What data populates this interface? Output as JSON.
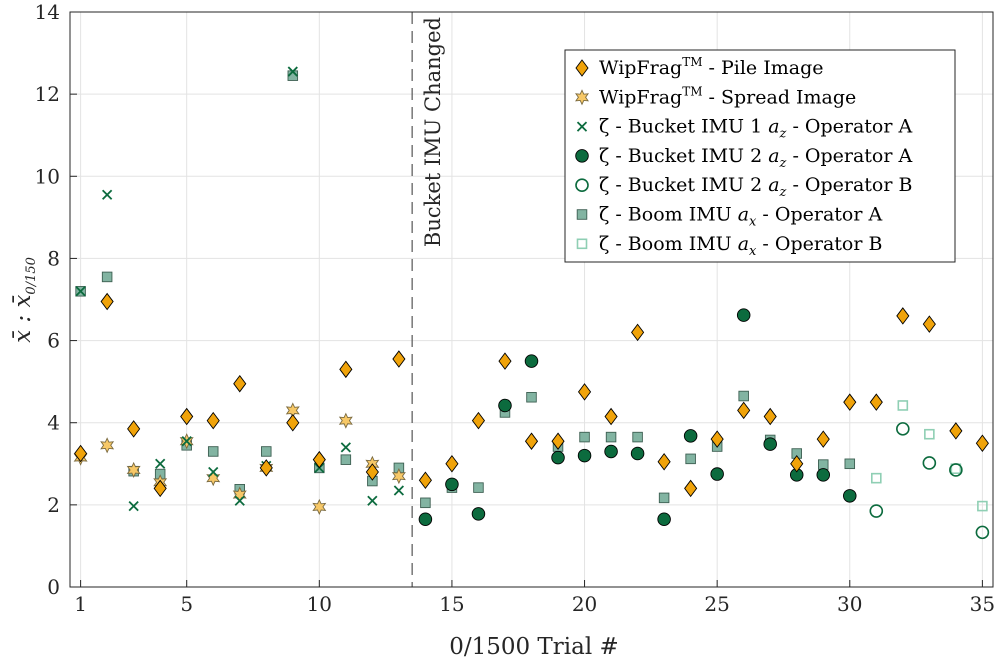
{
  "chart_data": {
    "type": "scatter",
    "xlabel": "0/1500 Trial #",
    "ylabel": {
      "main": "x̄ : x̄",
      "sub": "0/150"
    },
    "xlim": [
      0.6,
      35.4
    ],
    "ylim": [
      0,
      14
    ],
    "xticks": [
      1,
      5,
      10,
      15,
      20,
      25,
      30,
      35
    ],
    "yticks": [
      0,
      2,
      4,
      6,
      8,
      10,
      12,
      14
    ],
    "grid": true,
    "legend_position": "top-right",
    "annotation": {
      "text": "Bucket IMU Changed",
      "x": 13.5
    },
    "colors": {
      "orange": "#f0a30a",
      "dark_green": "#0c6b3e",
      "light_green": "#82b4a2",
      "pale_green": "#8fcfb4"
    },
    "series": [
      {
        "name": "WipFrag™ - Pile Image",
        "label_main": "WipFrag",
        "label_sup": "TM",
        "label_rest": " - Pile Image",
        "marker": "diamond",
        "x": [
          1,
          2,
          3,
          4,
          5,
          6,
          7,
          8,
          9,
          10,
          11,
          12,
          13,
          14,
          15,
          16,
          17,
          18,
          19,
          20,
          21,
          22,
          23,
          24,
          25,
          26,
          27,
          28,
          29,
          30,
          31,
          32,
          33,
          34,
          35
        ],
        "y": [
          3.25,
          6.95,
          3.85,
          2.4,
          4.15,
          4.05,
          4.95,
          2.9,
          4.0,
          3.1,
          5.3,
          2.8,
          5.55,
          2.6,
          3.0,
          4.05,
          5.5,
          3.55,
          3.55,
          4.75,
          4.15,
          6.2,
          3.05,
          2.4,
          3.6,
          4.3,
          4.15,
          3.0,
          3.6,
          4.5,
          4.5,
          6.6,
          6.4,
          3.8,
          3.5
        ]
      },
      {
        "name": "WipFrag™ - Spread Image",
        "label_main": "WipFrag",
        "label_sup": "TM",
        "label_rest": " - Spread Image",
        "marker": "star",
        "x": [
          1,
          2,
          3,
          4,
          5,
          6,
          7,
          8,
          9,
          10,
          11,
          12,
          13
        ],
        "y": [
          3.15,
          3.45,
          2.85,
          2.55,
          3.55,
          2.65,
          2.25,
          2.9,
          4.3,
          1.95,
          4.05,
          3.0,
          2.7
        ]
      },
      {
        "name": "ζ - Bucket IMU 1 a_z - Operator A",
        "label_pre": "ζ - Bucket IMU 1 ",
        "label_var": "a",
        "label_sub": "z",
        "label_rest": " - Operator A",
        "marker": "x",
        "x": [
          1,
          2,
          3,
          4,
          5,
          6,
          7,
          8,
          9,
          10,
          11,
          12,
          13
        ],
        "y": [
          7.2,
          9.55,
          1.97,
          3.0,
          3.55,
          2.8,
          2.1,
          2.95,
          12.55,
          2.9,
          3.4,
          2.1,
          2.35
        ]
      },
      {
        "name": "ζ - Bucket IMU 2 a_z - Operator A",
        "label_pre": "ζ - Bucket IMU 2 ",
        "label_var": "a",
        "label_sub": "z",
        "label_rest": " - Operator A",
        "marker": "circle-filled",
        "x": [
          14,
          15,
          16,
          17,
          18,
          19,
          20,
          21,
          22,
          23,
          24,
          25,
          26,
          27,
          28,
          29,
          30
        ],
        "y": [
          1.65,
          2.5,
          1.78,
          4.42,
          5.5,
          3.15,
          3.2,
          3.3,
          3.25,
          1.65,
          3.68,
          2.75,
          6.62,
          3.48,
          2.73,
          2.73,
          2.22
        ]
      },
      {
        "name": "ζ - Bucket IMU 2 a_z - Operator B",
        "label_pre": "ζ - Bucket IMU 2 ",
        "label_var": "a",
        "label_sub": "z",
        "label_rest": " - Operator B",
        "marker": "circle-open",
        "x": [
          31,
          32,
          33,
          34,
          35
        ],
        "y": [
          1.85,
          3.85,
          3.02,
          2.85,
          1.33
        ]
      },
      {
        "name": "ζ - Boom IMU a_x - Operator A",
        "label_pre": "ζ - Boom IMU ",
        "label_var": "a",
        "label_sub": "x",
        "label_rest": " - Operator A",
        "marker": "square-filled",
        "x": [
          1,
          2,
          3,
          4,
          5,
          6,
          7,
          8,
          9,
          10,
          11,
          12,
          13,
          14,
          15,
          16,
          17,
          18,
          19,
          20,
          21,
          22,
          23,
          24,
          25,
          26,
          27,
          28,
          29,
          30
        ],
        "y": [
          7.2,
          7.55,
          2.82,
          2.75,
          3.45,
          3.3,
          2.38,
          3.3,
          12.45,
          2.9,
          3.1,
          2.58,
          2.9,
          2.05,
          2.42,
          2.42,
          4.25,
          4.62,
          3.42,
          3.65,
          3.65,
          3.65,
          2.17,
          3.12,
          3.42,
          4.65,
          3.58,
          3.25,
          2.98,
          3.0
        ]
      },
      {
        "name": "ζ - Boom IMU a_x - Operator B",
        "label_pre": "ζ - Boom IMU ",
        "label_var": "a",
        "label_sub": "x",
        "label_rest": " - Operator B",
        "marker": "square-open",
        "x": [
          31,
          32,
          33,
          34,
          35
        ],
        "y": [
          2.65,
          4.42,
          3.72,
          2.88,
          1.97
        ]
      }
    ]
  }
}
